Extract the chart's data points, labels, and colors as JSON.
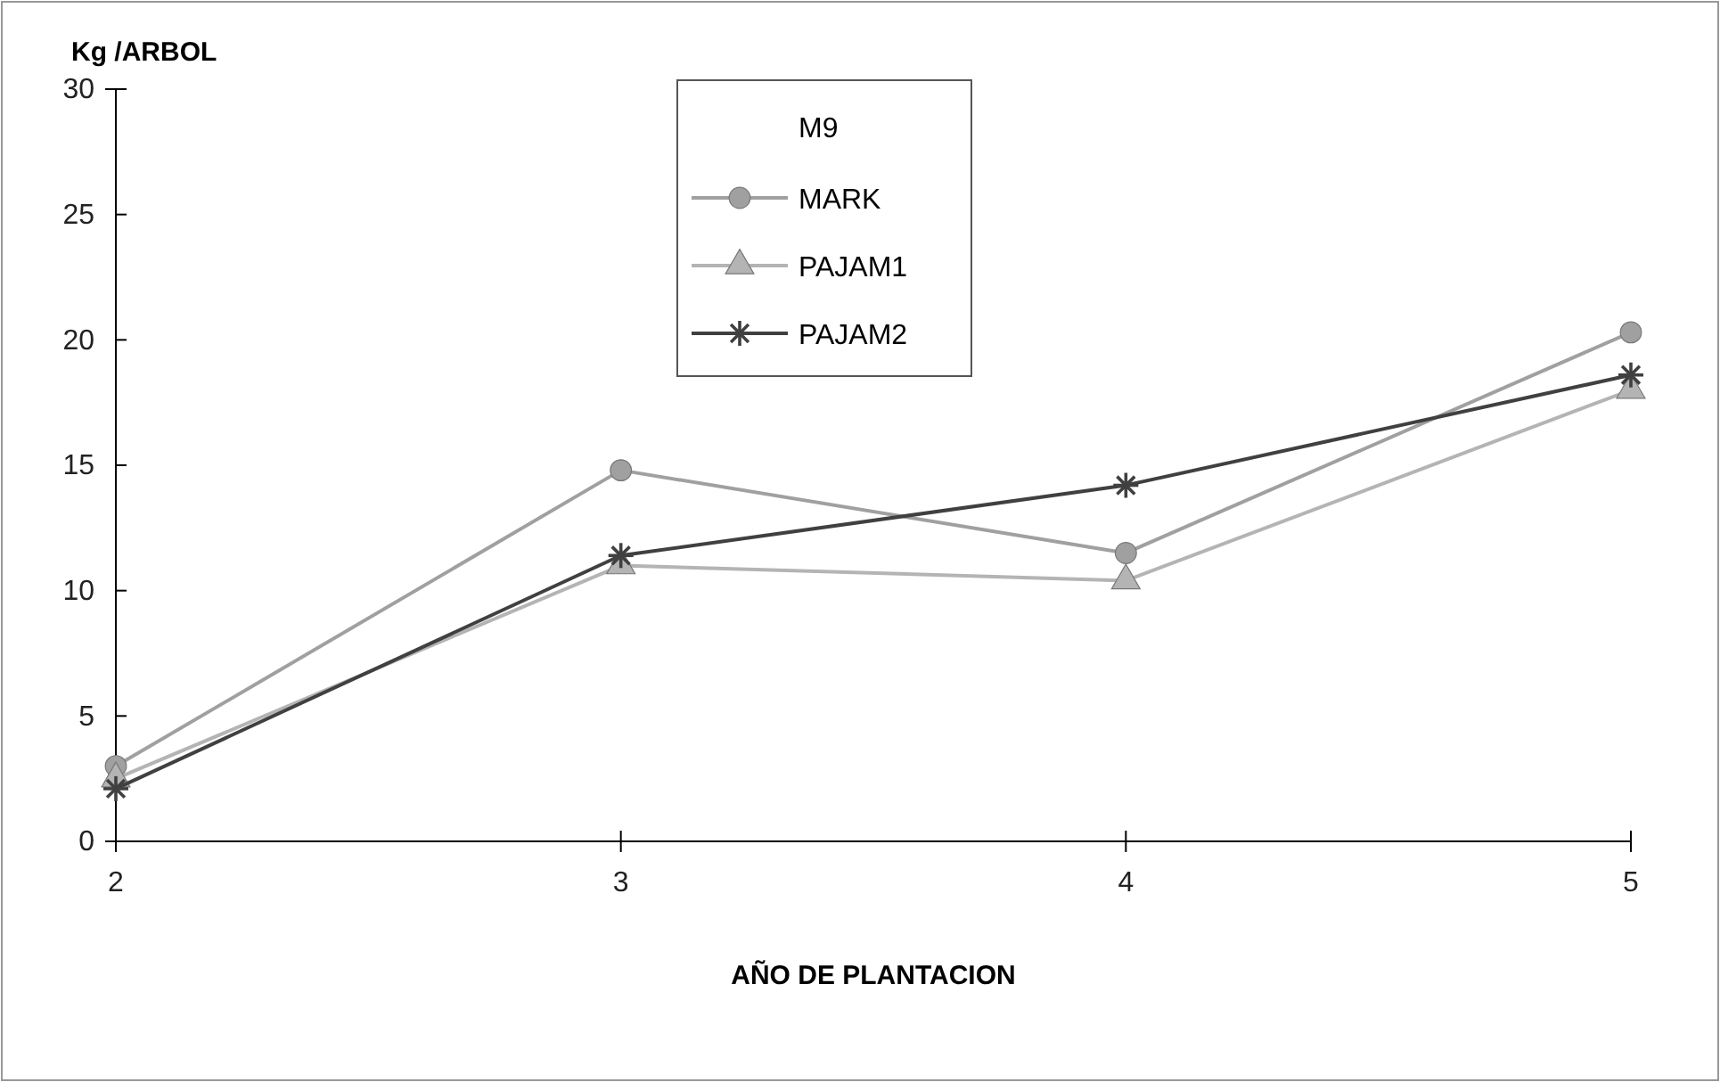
{
  "chart_data": {
    "type": "line",
    "ylabel": "Kg /ARBOL",
    "xlabel": "AÑO DE PLANTACION",
    "legend_title": "M9",
    "legend": "top",
    "x": [
      2,
      3,
      4,
      5
    ],
    "xlim": [
      2,
      5
    ],
    "xticks": [
      2,
      3,
      4,
      5
    ],
    "ylim": [
      0,
      30
    ],
    "yticks": [
      0,
      5,
      10,
      15,
      20,
      25,
      30
    ],
    "series": [
      {
        "name": "MARK",
        "color": "#a0a0a0",
        "marker": "circle",
        "values": [
          3.0,
          14.8,
          11.5,
          20.3
        ]
      },
      {
        "name": "PAJAM1",
        "color": "#b4b4b4",
        "marker": "triangle",
        "values": [
          2.5,
          11.0,
          10.4,
          18.0
        ]
      },
      {
        "name": "PAJAM2",
        "color": "#404040",
        "marker": "cross",
        "values": [
          2.1,
          11.4,
          14.2,
          18.6
        ]
      }
    ]
  }
}
